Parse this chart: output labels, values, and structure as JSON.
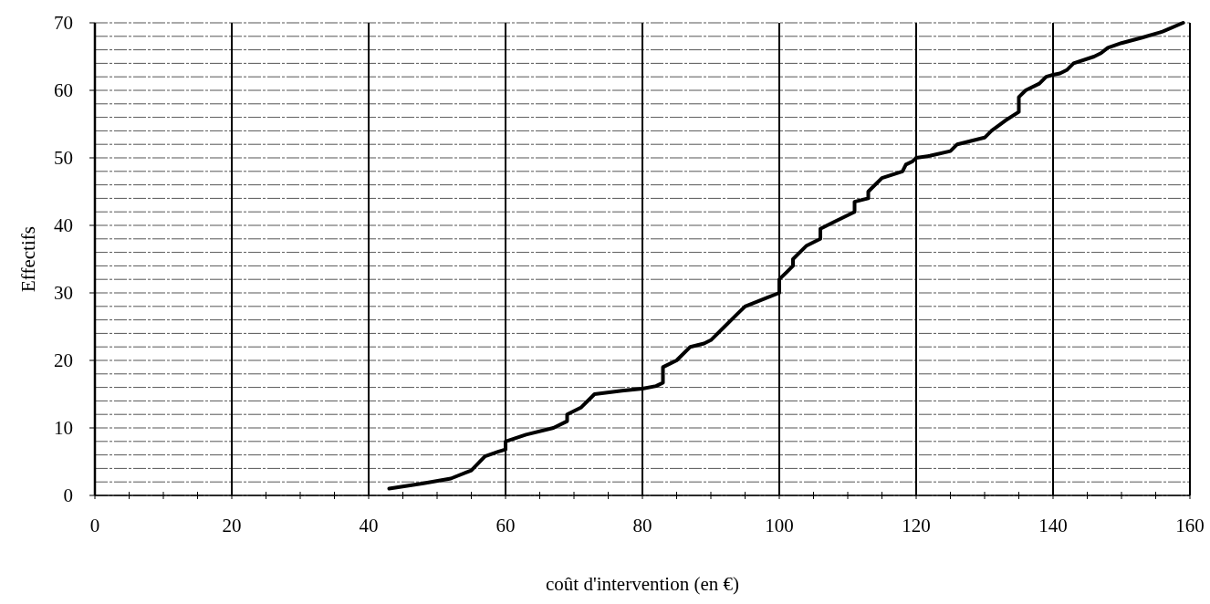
{
  "chart_data": {
    "type": "line",
    "xlabel": "coût d'intervention (en €)",
    "ylabel": "Effectifs",
    "xlim": [
      0,
      160
    ],
    "ylim": [
      0,
      70
    ],
    "xticks": [
      0,
      {
        "value": 5,
        "label": null
      },
      {
        "value": 10,
        "label": null
      },
      {
        "value": 15,
        "label": null
      },
      20,
      {
        "value": 25,
        "label": null
      },
      {
        "value": 30,
        "label": null
      },
      {
        "value": 35,
        "label": null
      },
      40,
      {
        "value": 45,
        "label": null
      },
      {
        "value": 50,
        "label": null
      },
      {
        "value": 55,
        "label": null
      },
      60,
      {
        "value": 65,
        "label": null
      },
      {
        "value": 70,
        "label": null
      },
      {
        "value": 75,
        "label": null
      },
      80,
      {
        "value": 85,
        "label": null
      },
      {
        "value": 90,
        "label": null
      },
      {
        "value": 95,
        "label": null
      },
      100,
      {
        "value": 105,
        "label": null
      },
      {
        "value": 110,
        "label": null
      },
      {
        "value": 115,
        "label": null
      },
      120,
      {
        "value": 125,
        "label": null
      },
      {
        "value": 130,
        "label": null
      },
      {
        "value": 135,
        "label": null
      },
      140,
      {
        "value": 145,
        "label": null
      },
      {
        "value": 150,
        "label": null
      },
      {
        "value": 155,
        "label": null
      },
      160
    ],
    "yticks": [
      0,
      {
        "value": 2,
        "label": null
      },
      {
        "value": 4,
        "label": null
      },
      {
        "value": 6,
        "label": null
      },
      {
        "value": 8,
        "label": null
      },
      10,
      {
        "value": 12,
        "label": null
      },
      {
        "value": 14,
        "label": null
      },
      {
        "value": 16,
        "label": null
      },
      {
        "value": 18,
        "label": null
      },
      20,
      {
        "value": 22,
        "label": null
      },
      {
        "value": 24,
        "label": null
      },
      {
        "value": 26,
        "label": null
      },
      {
        "value": 28,
        "label": null
      },
      30,
      {
        "value": 32,
        "label": null
      },
      {
        "value": 34,
        "label": null
      },
      {
        "value": 36,
        "label": null
      },
      {
        "value": 38,
        "label": null
      },
      40,
      {
        "value": 42,
        "label": null
      },
      {
        "value": 44,
        "label": null
      },
      {
        "value": 46,
        "label": null
      },
      {
        "value": 48,
        "label": null
      },
      50,
      {
        "value": 52,
        "label": null
      },
      {
        "value": 54,
        "label": null
      },
      {
        "value": 56,
        "label": null
      },
      {
        "value": 58,
        "label": null
      },
      60,
      {
        "value": 62,
        "label": null
      },
      {
        "value": 64,
        "label": null
      },
      {
        "value": 66,
        "label": null
      },
      {
        "value": 68,
        "label": null
      },
      70
    ],
    "grid": true,
    "marker": "none",
    "line_style": "solid",
    "series": [
      {
        "color": "#000000",
        "x": [
          43,
          48,
          52,
          55,
          57,
          59,
          60,
          60,
          63,
          67,
          69,
          69,
          71,
          73,
          77,
          80,
          82,
          83,
          83,
          85,
          87,
          89,
          90,
          92,
          94,
          95,
          98,
          100,
          100,
          101,
          102,
          102,
          104,
          106,
          106,
          108,
          111,
          111,
          113,
          113,
          115,
          118,
          118.5,
          119.5,
          120,
          122,
          125,
          126,
          128,
          130,
          131,
          133,
          135,
          135,
          136,
          138,
          139,
          140,
          141,
          142,
          143,
          146,
          147,
          148,
          150,
          153,
          156,
          159
        ],
        "values": [
          1,
          1.8,
          2.5,
          3.7,
          5.8,
          6.5,
          6.8,
          8,
          9,
          10,
          11,
          12,
          13,
          15,
          15.5,
          15.8,
          16.2,
          16.7,
          19,
          20,
          22,
          22.5,
          23,
          25,
          27,
          28,
          29.2,
          30,
          32,
          33,
          34,
          35,
          37,
          38,
          39.5,
          40.5,
          42,
          43.5,
          44,
          45,
          47,
          48,
          49,
          49.5,
          50,
          50.3,
          51,
          52,
          52.5,
          53,
          54,
          55.5,
          56.8,
          59,
          60,
          61,
          62,
          62.3,
          62.5,
          63,
          64,
          65,
          65.5,
          66.3,
          67,
          67.8,
          68.7,
          70
        ]
      }
    ]
  }
}
